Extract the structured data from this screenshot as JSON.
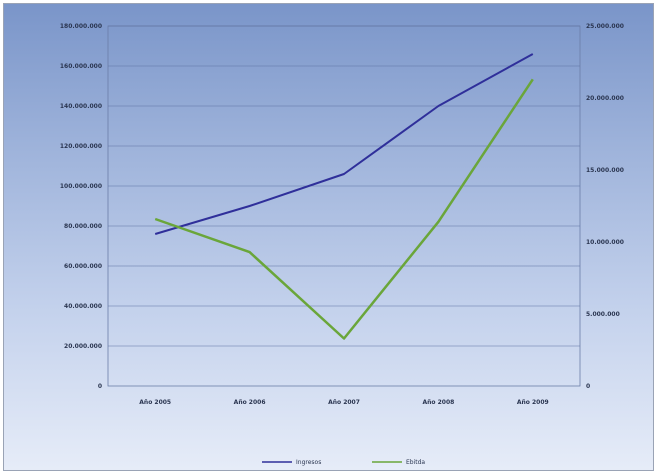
{
  "chart_data": {
    "type": "line",
    "categories": [
      "Año 2005",
      "Año 2006",
      "Año 2007",
      "Año 2008",
      "Año 2009"
    ],
    "y_left": {
      "ticks": [
        "0",
        "20.000.000",
        "40.000.000",
        "60.000.000",
        "80.000.000",
        "100.000.000",
        "120.000.000",
        "140.000.000",
        "160.000.000",
        "180.000.000"
      ],
      "ylim": [
        0,
        180000000
      ]
    },
    "y_right": {
      "ticks": [
        "0",
        "5.000.000",
        "10.000.000",
        "15.000.000",
        "20.000.000",
        "25.000.000"
      ],
      "ylim": [
        0,
        25000000
      ]
    },
    "series": [
      {
        "name": "Ingresos",
        "axis": "left",
        "color": "#2f2f9a",
        "values": [
          76000000,
          90000000,
          106000000,
          140000000,
          166000000
        ]
      },
      {
        "name": "Ebitda",
        "axis": "right",
        "color": "#6aa63a",
        "values": [
          11600000,
          9300000,
          3300000,
          11400000,
          21300000
        ]
      }
    ],
    "grid": true,
    "legend": "bottom"
  }
}
